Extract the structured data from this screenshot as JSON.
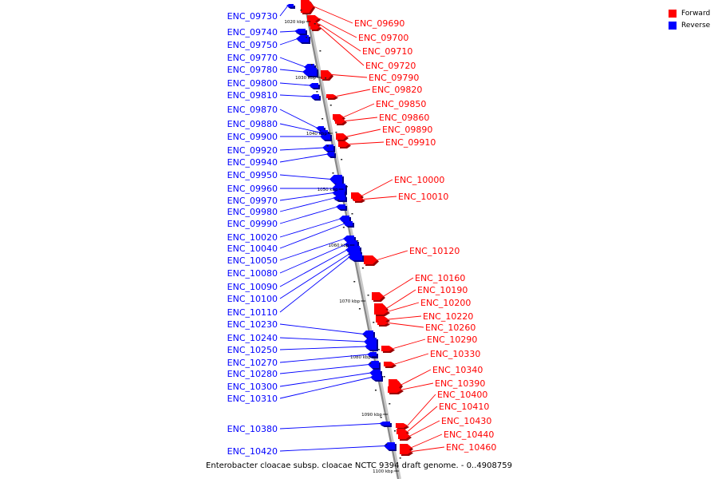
{
  "legend": {
    "forward": {
      "label": "Forward",
      "color": "#ff0000"
    },
    "reverse": {
      "label": "Reverse",
      "color": "#0000ff"
    }
  },
  "caption": "Enterobacter cloacae subsp. cloacae NCTC 9394 draft genome. - 0..4908759",
  "scale_ticks": [
    "1020 kbp",
    "1030 kbp",
    "1040 kbp",
    "1050 kbp",
    "1060 kbp",
    "1070 kbp",
    "1080 kbp",
    "1090 kbp",
    "1100 kbp"
  ],
  "reverse_genes": [
    "ENC_09730",
    "ENC_09740",
    "ENC_09750",
    "ENC_09770",
    "ENC_09780",
    "ENC_09800",
    "ENC_09810",
    "ENC_09870",
    "ENC_09880",
    "ENC_09900",
    "ENC_09920",
    "ENC_09940",
    "ENC_09950",
    "ENC_09960",
    "ENC_09970",
    "ENC_09980",
    "ENC_09990",
    "ENC_10020",
    "ENC_10040",
    "ENC_10050",
    "ENC_10080",
    "ENC_10090",
    "ENC_10100",
    "ENC_10110",
    "ENC_10230",
    "ENC_10240",
    "ENC_10250",
    "ENC_10270",
    "ENC_10280",
    "ENC_10300",
    "ENC_10310",
    "ENC_10380",
    "ENC_10420"
  ],
  "forward_genes": [
    "ENC_09690",
    "ENC_09700",
    "ENC_09710",
    "ENC_09720",
    "ENC_09790",
    "ENC_09820",
    "ENC_09850",
    "ENC_09860",
    "ENC_09890",
    "ENC_09910",
    "ENC_10000",
    "ENC_10010",
    "ENC_10120",
    "ENC_10160",
    "ENC_10190",
    "ENC_10200",
    "ENC_10220",
    "ENC_10260",
    "ENC_10290",
    "ENC_10330",
    "ENC_10340",
    "ENC_10390",
    "ENC_10400",
    "ENC_10410",
    "ENC_10430",
    "ENC_10440",
    "ENC_10460"
  ]
}
